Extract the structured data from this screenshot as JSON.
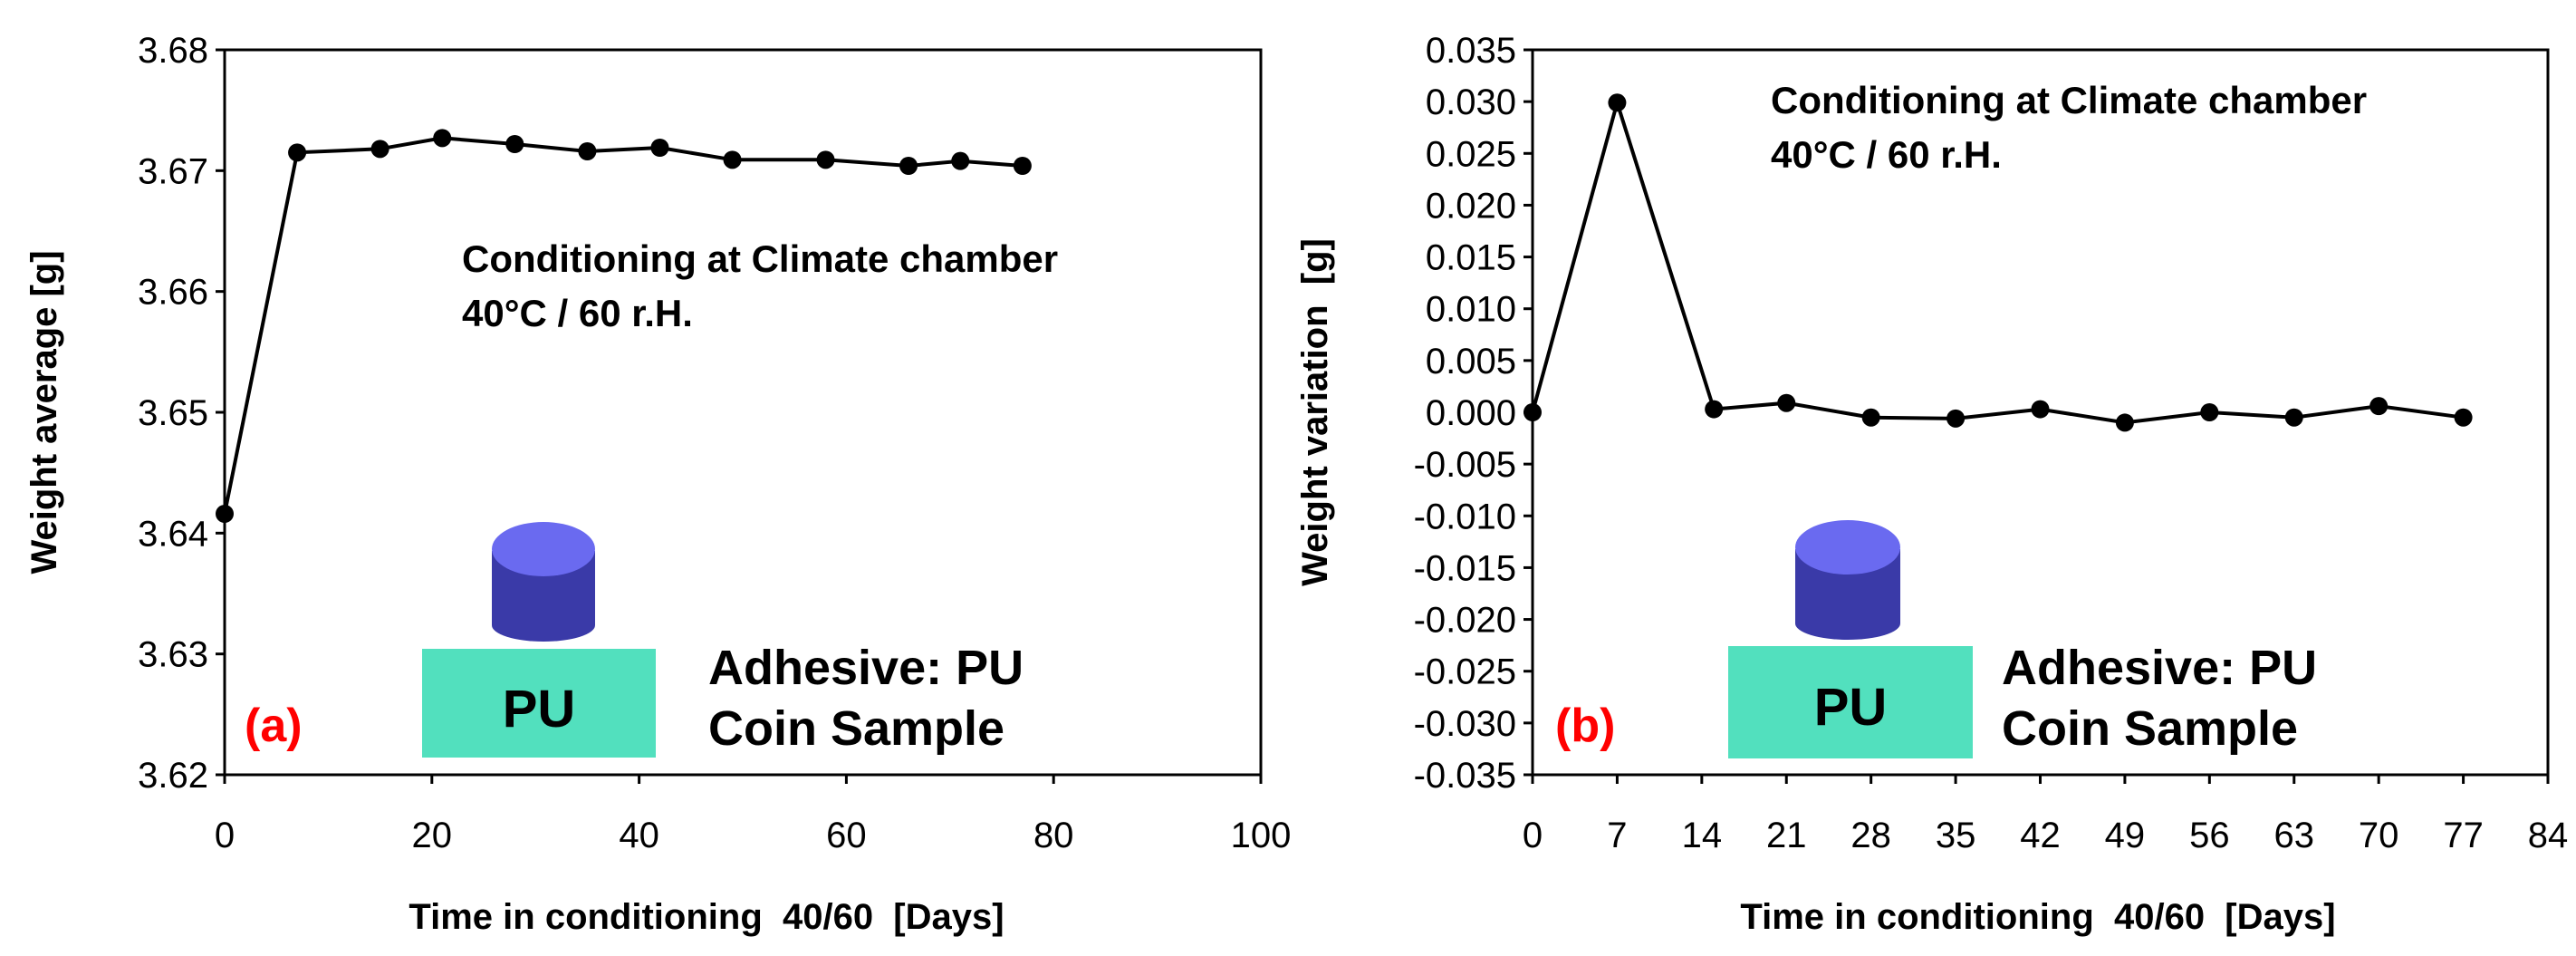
{
  "chart_data": [
    {
      "type": "line",
      "panel_label": "(a)",
      "xlabel": "Time in conditioning  40/60  [Days]",
      "ylabel": "Weight average [g]",
      "xlim": [
        0,
        100
      ],
      "ylim": [
        3.62,
        3.68
      ],
      "x_ticks": [
        "0",
        "20",
        "40",
        "60",
        "80",
        "100"
      ],
      "y_ticks": [
        "3.62",
        "3.63",
        "3.64",
        "3.65",
        "3.66",
        "3.67",
        "3.68"
      ],
      "x_tick_values": [
        0,
        20,
        40,
        60,
        80,
        100
      ],
      "y_tick_values": [
        3.62,
        3.63,
        3.64,
        3.65,
        3.66,
        3.67,
        3.68
      ],
      "series": [
        {
          "name": "Weight average",
          "x": [
            0,
            7,
            15,
            21,
            28,
            35,
            42,
            49,
            58,
            66,
            71,
            77
          ],
          "y": [
            3.6416,
            3.6715,
            3.6718,
            3.6727,
            3.6722,
            3.6716,
            3.6719,
            3.6709,
            3.6709,
            3.6704,
            3.6708,
            3.6704
          ]
        }
      ],
      "annotation_lines": [
        "Conditioning at Climate chamber",
        "40°C / 60 r.H."
      ],
      "legend_lines": [
        "Adhesive: PU",
        "Coin Sample"
      ],
      "block_label": "PU",
      "colors": {
        "line": "#000000",
        "block": "#52e0be",
        "cylinder_top": "#6a6af0",
        "cylinder_side": "#3a3aa8",
        "panel_label": "#ff0000"
      }
    },
    {
      "type": "line",
      "panel_label": "(b)",
      "xlabel": "Time in conditioning  40/60  [Days]",
      "ylabel": "Weight variation  [g]",
      "xlim": [
        0,
        84
      ],
      "ylim": [
        -0.035,
        0.035
      ],
      "x_ticks": [
        "0",
        "7",
        "14",
        "21",
        "28",
        "35",
        "42",
        "49",
        "56",
        "63",
        "70",
        "77",
        "84"
      ],
      "y_ticks": [
        "0.035",
        "0.030",
        "0.025",
        "0.020",
        "0.015",
        "0.010",
        "0.005",
        "0.000",
        "-0.005",
        "-0.010",
        "-0.015",
        "-0.020",
        "-0.025",
        "-0.030",
        "-0.035"
      ],
      "x_tick_values": [
        0,
        7,
        14,
        21,
        28,
        35,
        42,
        49,
        56,
        63,
        70,
        77,
        84
      ],
      "y_tick_values": [
        0.035,
        0.03,
        0.025,
        0.02,
        0.015,
        0.01,
        0.005,
        0.0,
        -0.005,
        -0.01,
        -0.015,
        -0.02,
        -0.025,
        -0.03,
        -0.035
      ],
      "series": [
        {
          "name": "Weight variation",
          "x": [
            0,
            7,
            15,
            21,
            28,
            35,
            42,
            49,
            56,
            63,
            70,
            77
          ],
          "y": [
            0.0,
            0.0299,
            0.0003,
            0.0009,
            -0.0005,
            -0.0006,
            0.0003,
            -0.001,
            0.0,
            -0.0005,
            0.0006,
            -0.0005
          ]
        }
      ],
      "annotation_lines": [
        "Conditioning at Climate chamber",
        "40°C / 60 r.H."
      ],
      "legend_lines": [
        "Adhesive: PU",
        "Coin Sample"
      ],
      "block_label": "PU",
      "colors": {
        "line": "#000000",
        "block": "#52e0be",
        "cylinder_top": "#6a6af0",
        "cylinder_side": "#3a3aa8",
        "panel_label": "#ff0000"
      }
    }
  ]
}
